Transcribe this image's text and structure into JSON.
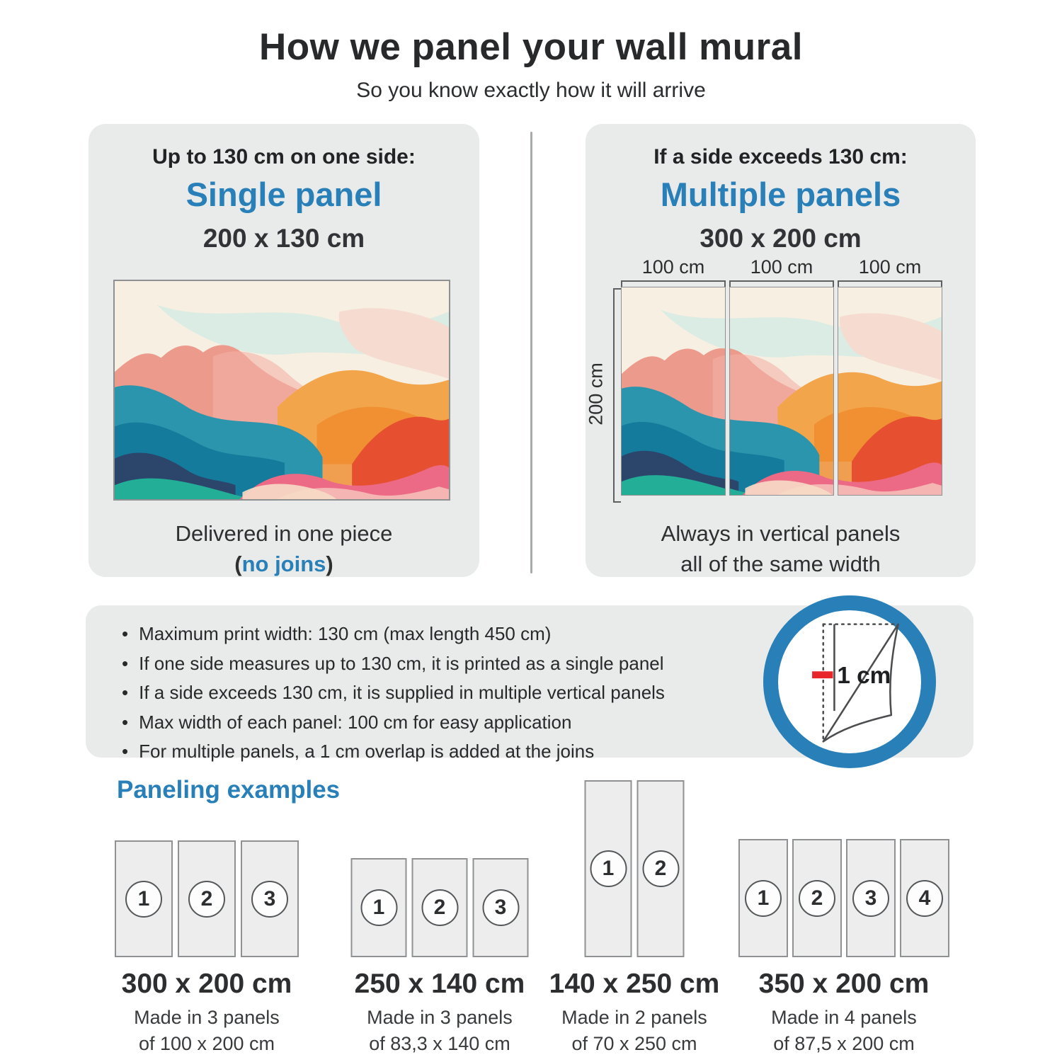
{
  "header": {
    "title": "How we panel your wall mural",
    "subtitle": "So you know exactly how it will arrive"
  },
  "single_card": {
    "condition": "Up to 130 cm on one side:",
    "name": "Single panel",
    "size": "200 x 130 cm",
    "footer_line1": "Delivered in one piece",
    "footer_open": "(",
    "footer_highlight": "no joins",
    "footer_close": ")"
  },
  "multi_card": {
    "condition": "If a side exceeds 130 cm:",
    "name": "Multiple panels",
    "size": "300 x 200 cm",
    "width_labels": [
      "100 cm",
      "100 cm",
      "100 cm"
    ],
    "height_label": "200 cm",
    "footer_line1": "Always in vertical panels",
    "footer_line2": "all of the same width"
  },
  "info": {
    "bullets": [
      "Maximum print width: 130 cm (max length 450 cm)",
      "If one side measures up to 130 cm, it is printed as a single panel",
      "If a side exceeds 130 cm, it is supplied in multiple vertical panels",
      "Max width of each panel: 100 cm for easy application",
      "For multiple panels, a 1 cm overlap is added at the joins"
    ],
    "overlap_label": "1 cm"
  },
  "examples": {
    "heading": "Paneling examples",
    "items": [
      {
        "size": "300 x 200 cm",
        "line1": "Made in 3 panels",
        "line2": "of 100 x 200 cm",
        "panels": [
          "1",
          "2",
          "3"
        ]
      },
      {
        "size": "250 x 140 cm",
        "line1": "Made in 3 panels",
        "line2": "of 83,3 x 140 cm",
        "panels": [
          "1",
          "2",
          "3"
        ]
      },
      {
        "size": "140 x 250 cm",
        "line1": "Made in 2 panels",
        "line2": "of 70 x 250 cm",
        "panels": [
          "1",
          "2"
        ]
      },
      {
        "size": "350 x 200 cm",
        "line1": "Made in 4 panels",
        "line2": "of 87,5 x 200 cm",
        "panels": [
          "1",
          "2",
          "3",
          "4"
        ]
      }
    ]
  },
  "colors": {
    "accent": "#2980b9",
    "dark_text": "#2c2e30",
    "card_bg": "#e9ebea",
    "overlap_red": "#e8262a"
  }
}
